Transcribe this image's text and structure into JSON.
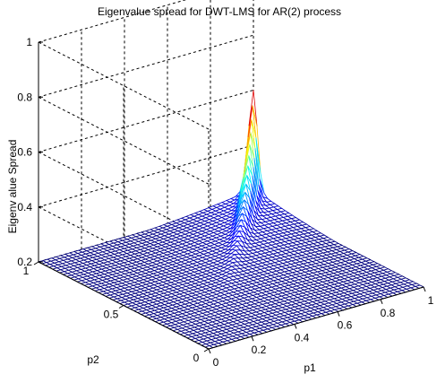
{
  "chart_data": {
    "type": "surface",
    "title": "Eigenvalue spread for DWT-LMS for AR(2) process",
    "xlabel": "p1",
    "ylabel": "p2",
    "zlabel": "Eigenv alue Spread",
    "x_ticks": [
      "0",
      "0.2",
      "0.4",
      "0.6",
      "0.8",
      "1"
    ],
    "y_ticks": [
      "0",
      "0.5",
      "1"
    ],
    "z_ticks": [
      "0.2",
      "0.4",
      "0.6",
      "0.8",
      "1"
    ],
    "xlim": [
      0,
      1
    ],
    "ylim": [
      0,
      1
    ],
    "zlim": [
      0.2,
      1
    ],
    "grid": true,
    "colormap": "jet",
    "surface_samples": {
      "description_points": [
        {
          "p1": 0.0,
          "p2": 1.0,
          "z": 0.2
        },
        {
          "p1": 1.0,
          "p2": 1.0,
          "z": 0.2
        },
        {
          "p1": 1.0,
          "p2": 0.0,
          "z": 0.2
        },
        {
          "p1": 0.0,
          "p2": 0.0,
          "z": 0.2
        },
        {
          "p1": 0.5,
          "p2": 0.5,
          "z": 0.28
        },
        {
          "p1": 0.75,
          "p2": 0.75,
          "z": 0.36
        },
        {
          "p1": 0.85,
          "p2": 0.85,
          "z": 0.47
        },
        {
          "p1": 0.9,
          "p2": 0.9,
          "z": 0.56
        }
      ]
    }
  }
}
